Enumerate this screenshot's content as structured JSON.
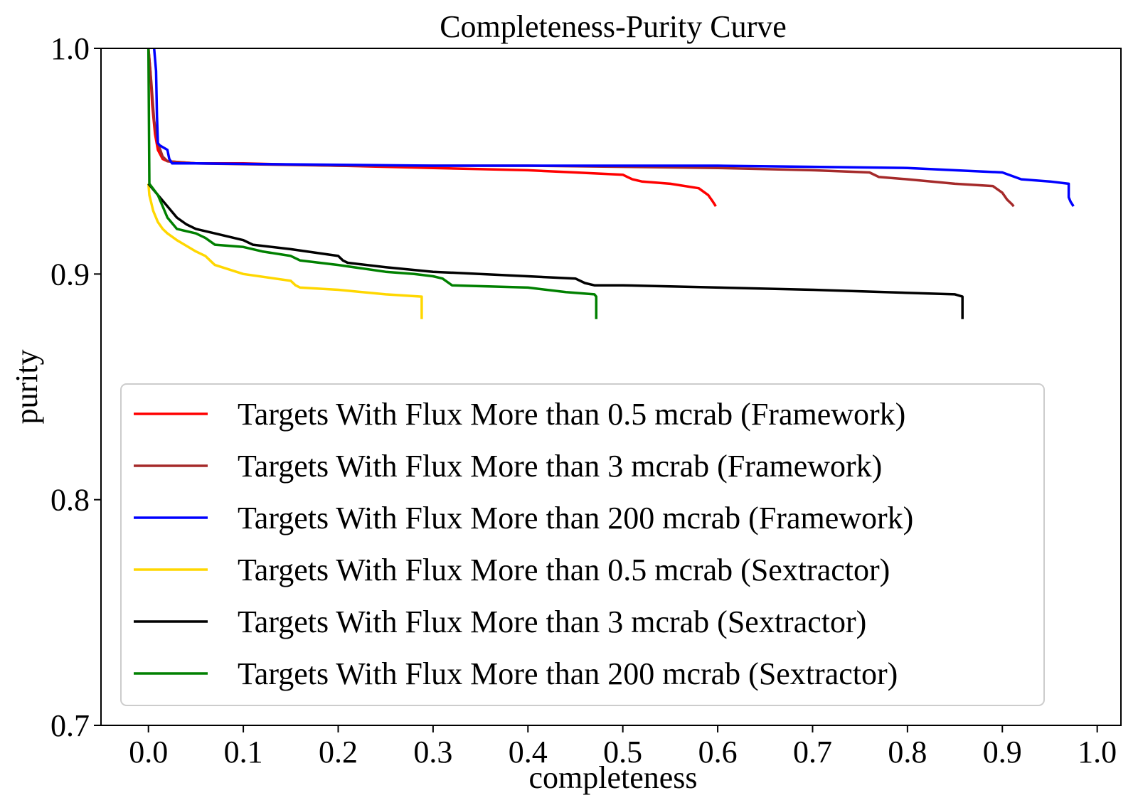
{
  "chart_data": {
    "type": "line",
    "title": "Completeness-Purity Curve",
    "xlabel": "completeness",
    "ylabel": "purity",
    "xlim": [
      -0.05,
      1.025
    ],
    "ylim": [
      0.7,
      1.0
    ],
    "xticks": [
      "0.0",
      "0.1",
      "0.2",
      "0.3",
      "0.4",
      "0.5",
      "0.6",
      "0.7",
      "0.8",
      "0.9",
      "1.0"
    ],
    "yticks": [
      "0.7",
      "0.8",
      "0.9",
      "1.0"
    ],
    "grid": false,
    "legend_position": "lower-center",
    "series": [
      {
        "name": "Targets With Flux More than 0.5 mcrab (Framework)",
        "color": "#ff0000",
        "x": [
          0.0,
          0.002,
          0.004,
          0.007,
          0.01,
          0.015,
          0.02,
          0.05,
          0.1,
          0.2,
          0.3,
          0.4,
          0.45,
          0.5,
          0.505,
          0.51,
          0.52,
          0.55,
          0.58,
          0.59,
          0.595,
          0.598
        ],
        "y": [
          1.0,
          0.99,
          0.975,
          0.962,
          0.955,
          0.951,
          0.95,
          0.949,
          0.949,
          0.948,
          0.947,
          0.946,
          0.945,
          0.944,
          0.943,
          0.942,
          0.941,
          0.94,
          0.938,
          0.935,
          0.932,
          0.93
        ]
      },
      {
        "name": "Targets With Flux More than 3 mcrab (Framework)",
        "color": "#a52a2a",
        "x": [
          0.0,
          0.003,
          0.006,
          0.01,
          0.015,
          0.02,
          0.05,
          0.2,
          0.4,
          0.6,
          0.7,
          0.76,
          0.77,
          0.8,
          0.85,
          0.89,
          0.9,
          0.905,
          0.91,
          0.912
        ],
        "y": [
          1.0,
          0.985,
          0.968,
          0.958,
          0.952,
          0.95,
          0.949,
          0.948,
          0.948,
          0.947,
          0.946,
          0.945,
          0.943,
          0.942,
          0.94,
          0.939,
          0.936,
          0.933,
          0.931,
          0.93
        ]
      },
      {
        "name": "Targets With Flux More than 200 mcrab (Framework)",
        "color": "#0000ff",
        "x": [
          0.006,
          0.008,
          0.009,
          0.01,
          0.012,
          0.02,
          0.022,
          0.025,
          0.05,
          0.3,
          0.6,
          0.8,
          0.9,
          0.92,
          0.95,
          0.97,
          0.97,
          0.972,
          0.975
        ],
        "y": [
          1.0,
          0.99,
          0.97,
          0.958,
          0.957,
          0.955,
          0.951,
          0.949,
          0.949,
          0.948,
          0.948,
          0.947,
          0.945,
          0.942,
          0.941,
          0.94,
          0.934,
          0.932,
          0.93
        ]
      },
      {
        "name": "Targets With Flux More than 0.5 mcrab (Sextractor)",
        "color": "#ffd700",
        "x": [
          0.0,
          0.001,
          0.005,
          0.01,
          0.015,
          0.02,
          0.03,
          0.05,
          0.06,
          0.065,
          0.07,
          0.1,
          0.15,
          0.155,
          0.16,
          0.2,
          0.25,
          0.288,
          0.288
        ],
        "y": [
          0.94,
          0.935,
          0.928,
          0.923,
          0.92,
          0.918,
          0.915,
          0.91,
          0.908,
          0.906,
          0.904,
          0.9,
          0.897,
          0.895,
          0.894,
          0.893,
          0.891,
          0.89,
          0.88
        ]
      },
      {
        "name": "Targets With Flux More than 3 mcrab (Sextractor)",
        "color": "#000000",
        "x": [
          0.0,
          0.01,
          0.02,
          0.03,
          0.04,
          0.05,
          0.07,
          0.1,
          0.11,
          0.15,
          0.2,
          0.205,
          0.21,
          0.25,
          0.3,
          0.4,
          0.45,
          0.46,
          0.47,
          0.5,
          0.7,
          0.85,
          0.858,
          0.858
        ],
        "y": [
          0.94,
          0.935,
          0.93,
          0.925,
          0.922,
          0.92,
          0.918,
          0.915,
          0.913,
          0.911,
          0.908,
          0.906,
          0.905,
          0.903,
          0.901,
          0.899,
          0.898,
          0.896,
          0.895,
          0.895,
          0.893,
          0.891,
          0.89,
          0.88
        ]
      },
      {
        "name": "Targets With Flux More than 200 mcrab (Sextractor)",
        "color": "#008000",
        "x": [
          0.0,
          0.001,
          0.01,
          0.015,
          0.02,
          0.03,
          0.05,
          0.06,
          0.07,
          0.1,
          0.12,
          0.15,
          0.16,
          0.2,
          0.25,
          0.28,
          0.3,
          0.31,
          0.32,
          0.4,
          0.44,
          0.47,
          0.472,
          0.472
        ],
        "y": [
          1.0,
          0.94,
          0.935,
          0.93,
          0.925,
          0.92,
          0.918,
          0.916,
          0.913,
          0.912,
          0.91,
          0.908,
          0.906,
          0.904,
          0.901,
          0.9,
          0.899,
          0.898,
          0.895,
          0.894,
          0.892,
          0.891,
          0.89,
          0.88
        ]
      }
    ]
  }
}
